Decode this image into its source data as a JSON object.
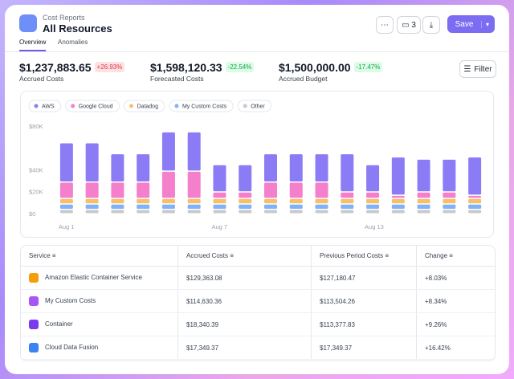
{
  "header": {
    "breadcrumb": "Cost Reports",
    "title": "All Resources",
    "comments": 3,
    "save": "Save"
  },
  "tabs": [
    "Overview",
    "Anomalies"
  ],
  "metrics": [
    {
      "value": "$1,237,883.65",
      "change": "+26.93%",
      "label": "Accrued Costs"
    },
    {
      "value": "$1,598,120.33",
      "change": "-22.54%",
      "label": "Forecasted Costs"
    },
    {
      "value": "$1,500,000.00",
      "change": "-17.47%",
      "label": "Accrued Budget"
    }
  ],
  "filter": "Filter",
  "chart_data": {
    "type": "stacked-bar",
    "categories": [
      "Aug 1",
      null,
      null,
      null,
      null,
      null,
      "Aug 7",
      null,
      null,
      null,
      null,
      null,
      "Aug 13",
      null,
      null,
      null,
      null
    ],
    "series": [
      {
        "name": "AWS",
        "color": "#8b7cf6",
        "values": [
          36000,
          36000,
          26000,
          26000,
          36000,
          36000,
          25000,
          25000,
          26000,
          26000,
          26000,
          35000,
          25000,
          35000,
          30000,
          30000,
          35000
        ]
      },
      {
        "name": "Google Cloud",
        "color": "#f47fcb",
        "values": [
          15000,
          15000,
          15000,
          15000,
          25000,
          25000,
          6000,
          6000,
          15000,
          15000,
          15000,
          6000,
          6000,
          3000,
          6000,
          6000,
          3000
        ]
      },
      {
        "name": "Datadog",
        "color": "#f7bf6a",
        "values": [
          5000,
          5000,
          5000,
          5000,
          5000,
          5000,
          5000,
          5000,
          5000,
          5000,
          5000,
          5000,
          5000,
          5000,
          5000,
          5000,
          5000
        ]
      },
      {
        "name": "My Custom Costs",
        "color": "#7fb2f7",
        "values": [
          5000,
          5000,
          5000,
          5000,
          5000,
          5000,
          5000,
          5000,
          5000,
          5000,
          5000,
          5000,
          5000,
          5000,
          5000,
          5000,
          5000
        ]
      },
      {
        "name": "Other",
        "color": "#c9c9cc",
        "values": [
          4000,
          4000,
          4000,
          4000,
          4000,
          4000,
          4000,
          4000,
          4000,
          4000,
          4000,
          4000,
          4000,
          4000,
          4000,
          4000,
          4000
        ]
      }
    ],
    "ylim": [
      0,
      80000
    ],
    "yticks": [
      {
        "value": 0,
        "label": "$0"
      },
      {
        "value": 20000,
        "label": "$20K"
      },
      {
        "value": 40000,
        "label": "$40K"
      },
      {
        "value": 80000,
        "label": "$80K"
      }
    ]
  },
  "table": {
    "columns": [
      "Service",
      "Accrued Costs",
      "Previous Period Costs",
      "Change"
    ],
    "rows": [
      [
        "Amazon Elastic Container Service",
        "$129,363.08",
        "$127,180.47",
        "+8.03%"
      ],
      [
        "My Custom Costs",
        "$114,630.36",
        "$113,504.26",
        "+8.34%"
      ],
      [
        "Container",
        "$18,340.39",
        "$113,377.83",
        "+9.26%"
      ],
      [
        "Cloud Data Fusion",
        "$17,349.37",
        "$17,349.37",
        "+16.42%"
      ]
    ]
  }
}
